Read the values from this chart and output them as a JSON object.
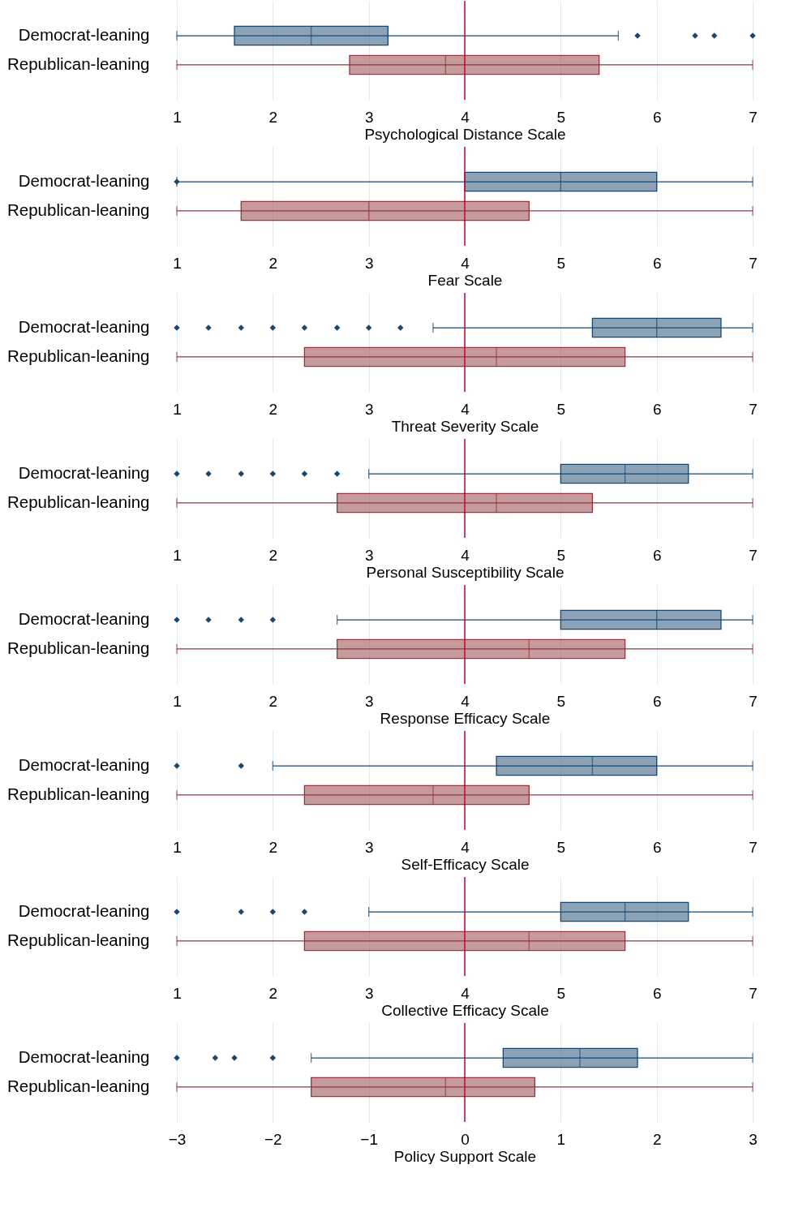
{
  "chart_data": [
    {
      "type": "box",
      "categories": [
        "Democrat-leaning",
        "Republican-leaning"
      ],
      "colors": [
        "#1a476f",
        "#90353b"
      ],
      "xlabel": "Psychological Distance Scale",
      "xlim": [
        1,
        7
      ],
      "xticks": [
        1,
        2,
        3,
        4,
        5,
        6,
        7
      ],
      "grid": "x",
      "orientation": "horizontal",
      "ref_lines": [
        {
          "axis": "x",
          "value": 4,
          "color": "#c10534"
        }
      ],
      "boxes": [
        {
          "low": 1,
          "q1": 1.6,
          "median": 2.4,
          "q3": 3.2,
          "high": 5.6,
          "outliers": [
            5.8,
            6.4,
            6.6,
            7
          ]
        },
        {
          "low": 1,
          "q1": 2.8,
          "median": 3.8,
          "q3": 5.4,
          "high": 7
        }
      ]
    },
    {
      "type": "box",
      "categories": [
        "Democrat-leaning",
        "Republican-leaning"
      ],
      "colors": [
        "#1a476f",
        "#90353b"
      ],
      "xlabel": "Fear Scale",
      "xlim": [
        1,
        7
      ],
      "xticks": [
        1,
        2,
        3,
        4,
        5,
        6,
        7
      ],
      "grid": "x",
      "orientation": "horizontal",
      "ref_lines": [
        {
          "axis": "x",
          "value": 4,
          "color": "#c10534"
        }
      ],
      "boxes": [
        {
          "low": 1,
          "q1": 4,
          "median": 5,
          "q3": 6,
          "high": 7,
          "outliers": [
            1
          ]
        },
        {
          "low": 1,
          "q1": 1.67,
          "median": 3,
          "q3": 4.67,
          "high": 7
        }
      ]
    },
    {
      "type": "box",
      "categories": [
        "Democrat-leaning",
        "Republican-leaning"
      ],
      "colors": [
        "#1a476f",
        "#90353b"
      ],
      "xlabel": "Threat Severity Scale",
      "xlim": [
        1,
        7
      ],
      "xticks": [
        1,
        2,
        3,
        4,
        5,
        6,
        7
      ],
      "grid": "x",
      "orientation": "horizontal",
      "ref_lines": [
        {
          "axis": "x",
          "value": 4,
          "color": "#c10534"
        }
      ],
      "boxes": [
        {
          "low": 3.67,
          "q1": 5.33,
          "median": 6,
          "q3": 6.67,
          "high": 7,
          "outliers": [
            1,
            1.33,
            1.67,
            2,
            2.33,
            2.67,
            3,
            3.33
          ]
        },
        {
          "low": 1,
          "q1": 2.33,
          "median": 4.33,
          "q3": 5.67,
          "high": 7
        }
      ]
    },
    {
      "type": "box",
      "categories": [
        "Democrat-leaning",
        "Republican-leaning"
      ],
      "colors": [
        "#1a476f",
        "#90353b"
      ],
      "xlabel": "Personal Susceptibility Scale",
      "xlim": [
        1,
        7
      ],
      "xticks": [
        1,
        2,
        3,
        4,
        5,
        6,
        7
      ],
      "grid": "x",
      "orientation": "horizontal",
      "ref_lines": [
        {
          "axis": "x",
          "value": 4,
          "color": "#c10534"
        }
      ],
      "boxes": [
        {
          "low": 3,
          "q1": 5,
          "median": 5.67,
          "q3": 6.33,
          "high": 7,
          "outliers": [
            1,
            1.33,
            1.67,
            2,
            2.33,
            2.67
          ]
        },
        {
          "low": 1,
          "q1": 2.67,
          "median": 4.33,
          "q3": 5.33,
          "high": 7
        }
      ]
    },
    {
      "type": "box",
      "categories": [
        "Democrat-leaning",
        "Republican-leaning"
      ],
      "colors": [
        "#1a476f",
        "#90353b"
      ],
      "xlabel": "Response Efficacy Scale",
      "xlim": [
        1,
        7
      ],
      "xticks": [
        1,
        2,
        3,
        4,
        5,
        6,
        7
      ],
      "grid": "x",
      "orientation": "horizontal",
      "ref_lines": [
        {
          "axis": "x",
          "value": 4,
          "color": "#c10534"
        }
      ],
      "boxes": [
        {
          "low": 2.67,
          "q1": 5,
          "median": 6,
          "q3": 6.67,
          "high": 7,
          "outliers": [
            1,
            1.33,
            1.67,
            2
          ]
        },
        {
          "low": 1,
          "q1": 2.67,
          "median": 4.67,
          "q3": 5.67,
          "high": 7
        }
      ]
    },
    {
      "type": "box",
      "categories": [
        "Democrat-leaning",
        "Republican-leaning"
      ],
      "colors": [
        "#1a476f",
        "#90353b"
      ],
      "xlabel": "Self-Efficacy Scale",
      "xlim": [
        1,
        7
      ],
      "xticks": [
        1,
        2,
        3,
        4,
        5,
        6,
        7
      ],
      "grid": "x",
      "orientation": "horizontal",
      "ref_lines": [
        {
          "axis": "x",
          "value": 4,
          "color": "#c10534"
        }
      ],
      "boxes": [
        {
          "low": 2,
          "q1": 4.33,
          "median": 5.33,
          "q3": 6,
          "high": 7,
          "outliers": [
            1,
            1.67
          ]
        },
        {
          "low": 1,
          "q1": 2.33,
          "median": 3.67,
          "q3": 4.67,
          "high": 7
        }
      ]
    },
    {
      "type": "box",
      "categories": [
        "Democrat-leaning",
        "Republican-leaning"
      ],
      "colors": [
        "#1a476f",
        "#90353b"
      ],
      "xlabel": "Collective Efficacy Scale",
      "xlim": [
        1,
        7
      ],
      "xticks": [
        1,
        2,
        3,
        4,
        5,
        6,
        7
      ],
      "grid": "x",
      "orientation": "horizontal",
      "ref_lines": [
        {
          "axis": "x",
          "value": 4,
          "color": "#c10534"
        }
      ],
      "boxes": [
        {
          "low": 3,
          "q1": 5,
          "median": 5.67,
          "q3": 6.33,
          "high": 7,
          "outliers": [
            1,
            1.67,
            2,
            2.33
          ]
        },
        {
          "low": 1,
          "q1": 2.33,
          "median": 4.67,
          "q3": 5.67,
          "high": 7
        }
      ]
    },
    {
      "type": "box",
      "categories": [
        "Democrat-leaning",
        "Republican-leaning"
      ],
      "colors": [
        "#1a476f",
        "#90353b"
      ],
      "xlabel": "Policy Support Scale",
      "xlim": [
        -3,
        3
      ],
      "xticks": [
        -3,
        -2,
        -1,
        0,
        1,
        2,
        3
      ],
      "grid": "x",
      "orientation": "horizontal",
      "ref_lines": [
        {
          "axis": "x",
          "value": 0,
          "color": "#c10534"
        }
      ],
      "boxes": [
        {
          "low": -1.6,
          "q1": 0.4,
          "median": 1.2,
          "q3": 1.8,
          "high": 3,
          "outliers": [
            -3,
            -2.6,
            -2.4,
            -2
          ]
        },
        {
          "low": -3,
          "q1": -1.6,
          "median": -0.2,
          "q3": 0.73,
          "high": 3
        }
      ]
    }
  ]
}
